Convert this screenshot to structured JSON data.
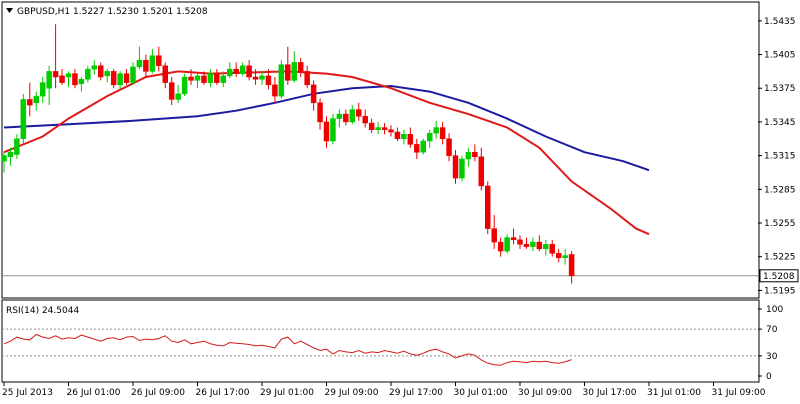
{
  "header": {
    "symbol_line": "GBPUSD,H1  1.5227 1.5230 1.5201 1.5208",
    "rsi_label": "RSI(14) 24.5044"
  },
  "colors": {
    "bull": "#00cc00",
    "bear": "#ee0000",
    "ma_fast": "#e01818",
    "ma_slow": "#1c1ca0",
    "rsi": "#d41c1c",
    "level_line": "#909090"
  },
  "chart_data": [
    {
      "type": "candlestick",
      "title": "GBPUSD,H1",
      "ohlc_header": [
        1.5227,
        1.523,
        1.5201,
        1.5208
      ],
      "ylim": [
        1.519,
        1.545
      ],
      "y_ticks": [
        "1.5435",
        "1.5405",
        "1.5375",
        "1.5345",
        "1.5315",
        "1.5285",
        "1.5255",
        "1.5225",
        "1.5195"
      ],
      "current_price_label": "1.5208",
      "current_price": 1.5208,
      "x_tick_labels": [
        "25 Jul 2013",
        "26 Jul 01:00",
        "26 Jul 09:00",
        "26 Jul 17:00",
        "29 Jul 01:00",
        "29 Jul 09:00",
        "29 Jul 17:00",
        "30 Jul 01:00",
        "30 Jul 09:00",
        "30 Jul 17:00",
        "31 Jul 01:00",
        "31 Jul 09:00"
      ],
      "x_tick_bar_index": [
        0,
        10,
        20,
        30,
        40,
        50,
        60,
        70,
        80,
        90,
        100,
        110
      ],
      "candles": [
        [
          1.531,
          1.5318,
          1.53,
          1.5315
        ],
        [
          1.5314,
          1.5322,
          1.5306,
          1.5318
        ],
        [
          1.5316,
          1.5334,
          1.5312,
          1.533
        ],
        [
          1.533,
          1.537,
          1.5325,
          1.5365
        ],
        [
          1.5365,
          1.538,
          1.535,
          1.536
        ],
        [
          1.5362,
          1.5372,
          1.5355,
          1.5368
        ],
        [
          1.5368,
          1.5385,
          1.5362,
          1.538
        ],
        [
          1.5375,
          1.5395,
          1.536,
          1.539
        ],
        [
          1.539,
          1.5432,
          1.5375,
          1.5385
        ],
        [
          1.5386,
          1.5392,
          1.5378,
          1.538
        ],
        [
          1.5385,
          1.539,
          1.5376,
          1.5388
        ],
        [
          1.5388,
          1.5392,
          1.5375,
          1.5378
        ],
        [
          1.5379,
          1.5385,
          1.5372,
          1.5383
        ],
        [
          1.5383,
          1.5395,
          1.538,
          1.5392
        ],
        [
          1.5392,
          1.54,
          1.5387,
          1.5395
        ],
        [
          1.5395,
          1.5398,
          1.5382,
          1.5385
        ],
        [
          1.5386,
          1.5392,
          1.538,
          1.539
        ],
        [
          1.539,
          1.5392,
          1.5375,
          1.5378
        ],
        [
          1.5378,
          1.539,
          1.5374,
          1.5388
        ],
        [
          1.5388,
          1.5392,
          1.5378,
          1.538
        ],
        [
          1.538,
          1.5398,
          1.5378,
          1.5394
        ],
        [
          1.5394,
          1.5412,
          1.5392,
          1.54
        ],
        [
          1.54,
          1.5405,
          1.5385,
          1.539
        ],
        [
          1.539,
          1.541,
          1.5388,
          1.5404
        ],
        [
          1.5404,
          1.5412,
          1.539,
          1.5395
        ],
        [
          1.5395,
          1.5398,
          1.5375,
          1.538
        ],
        [
          1.538,
          1.5385,
          1.536,
          1.5365
        ],
        [
          1.5365,
          1.5378,
          1.5362,
          1.537
        ],
        [
          1.537,
          1.5388,
          1.5368,
          1.5385
        ],
        [
          1.5385,
          1.5392,
          1.5378,
          1.5382
        ],
        [
          1.5382,
          1.5388,
          1.5375,
          1.5386
        ],
        [
          1.5386,
          1.539,
          1.5378,
          1.538
        ],
        [
          1.538,
          1.5392,
          1.5376,
          1.5388
        ],
        [
          1.5388,
          1.5392,
          1.5378,
          1.538
        ],
        [
          1.538,
          1.539,
          1.5376,
          1.5386
        ],
        [
          1.5386,
          1.5398,
          1.5384,
          1.5392
        ],
        [
          1.5392,
          1.5398,
          1.5385,
          1.5388
        ],
        [
          1.5388,
          1.5398,
          1.5386,
          1.5395
        ],
        [
          1.5395,
          1.54,
          1.5382,
          1.5385
        ],
        [
          1.5385,
          1.5392,
          1.5378,
          1.5383
        ],
        [
          1.5383,
          1.539,
          1.5378,
          1.5386
        ],
        [
          1.5386,
          1.5392,
          1.5374,
          1.5378
        ],
        [
          1.5378,
          1.5385,
          1.5362,
          1.5368
        ],
        [
          1.5368,
          1.54,
          1.5366,
          1.5396
        ],
        [
          1.5396,
          1.5412,
          1.5378,
          1.5382
        ],
        [
          1.5382,
          1.5408,
          1.538,
          1.5398
        ],
        [
          1.5398,
          1.5402,
          1.5385,
          1.539
        ],
        [
          1.539,
          1.5395,
          1.5375,
          1.5378
        ],
        [
          1.5378,
          1.5382,
          1.5355,
          1.5362
        ],
        [
          1.5362,
          1.5366,
          1.5338,
          1.5345
        ],
        [
          1.5345,
          1.535,
          1.5322,
          1.5328
        ],
        [
          1.5328,
          1.5352,
          1.5325,
          1.5348
        ],
        [
          1.5348,
          1.5356,
          1.534,
          1.5352
        ],
        [
          1.5352,
          1.5356,
          1.5342,
          1.5345
        ],
        [
          1.5345,
          1.536,
          1.5343,
          1.5356
        ],
        [
          1.5356,
          1.5362,
          1.5346,
          1.535
        ],
        [
          1.535,
          1.5356,
          1.534,
          1.5344
        ],
        [
          1.5344,
          1.5348,
          1.5335,
          1.5338
        ],
        [
          1.5338,
          1.5345,
          1.5334,
          1.534
        ],
        [
          1.534,
          1.5344,
          1.5334,
          1.5338
        ],
        [
          1.5338,
          1.5342,
          1.5332,
          1.5336
        ],
        [
          1.5336,
          1.534,
          1.5328,
          1.533
        ],
        [
          1.533,
          1.5338,
          1.5325,
          1.5334
        ],
        [
          1.5334,
          1.534,
          1.5322,
          1.5325
        ],
        [
          1.5325,
          1.533,
          1.5312,
          1.5318
        ],
        [
          1.5318,
          1.533,
          1.5316,
          1.5328
        ],
        [
          1.5328,
          1.5338,
          1.5322,
          1.5335
        ],
        [
          1.5335,
          1.5346,
          1.533,
          1.534
        ],
        [
          1.534,
          1.5345,
          1.5325,
          1.533
        ],
        [
          1.533,
          1.5335,
          1.531,
          1.5315
        ],
        [
          1.5315,
          1.532,
          1.529,
          1.5295
        ],
        [
          1.5295,
          1.5315,
          1.5292,
          1.5312
        ],
        [
          1.5312,
          1.5322,
          1.5305,
          1.5318
        ],
        [
          1.5318,
          1.5325,
          1.531,
          1.5314
        ],
        [
          1.5314,
          1.5322,
          1.5284,
          1.5288
        ],
        [
          1.5288,
          1.5292,
          1.5245,
          1.525
        ],
        [
          1.525,
          1.5262,
          1.5232,
          1.5238
        ],
        [
          1.5238,
          1.5242,
          1.5225,
          1.523
        ],
        [
          1.523,
          1.5245,
          1.5228,
          1.5242
        ],
        [
          1.5242,
          1.525,
          1.5236,
          1.524
        ],
        [
          1.524,
          1.5244,
          1.5232,
          1.5236
        ],
        [
          1.5236,
          1.5242,
          1.5232,
          1.5234
        ],
        [
          1.5234,
          1.5242,
          1.523,
          1.5238
        ],
        [
          1.5238,
          1.5244,
          1.523,
          1.5232
        ],
        [
          1.5232,
          1.524,
          1.5226,
          1.5236
        ],
        [
          1.5236,
          1.524,
          1.5225,
          1.5228
        ],
        [
          1.5228,
          1.5232,
          1.522,
          1.5224
        ],
        [
          1.5224,
          1.5232,
          1.5218,
          1.5226
        ],
        [
          1.5227,
          1.523,
          1.5201,
          1.5208
        ]
      ],
      "ma_fast_points": [
        [
          0,
          1.5318
        ],
        [
          6,
          1.5332
        ],
        [
          10,
          1.5348
        ],
        [
          16,
          1.5368
        ],
        [
          22,
          1.5385
        ],
        [
          27,
          1.539
        ],
        [
          32,
          1.5388
        ],
        [
          38,
          1.5389
        ],
        [
          44,
          1.539
        ],
        [
          50,
          1.5388
        ],
        [
          54,
          1.5385
        ],
        [
          60,
          1.5375
        ],
        [
          66,
          1.5362
        ],
        [
          72,
          1.5352
        ],
        [
          78,
          1.534
        ],
        [
          83,
          1.5322
        ],
        [
          88,
          1.5292
        ],
        [
          94,
          1.5268
        ],
        [
          98,
          1.525
        ],
        [
          100,
          1.5245
        ]
      ],
      "ma_slow_points": [
        [
          0,
          1.534
        ],
        [
          10,
          1.5343
        ],
        [
          20,
          1.5346
        ],
        [
          30,
          1.535
        ],
        [
          36,
          1.5355
        ],
        [
          42,
          1.5362
        ],
        [
          48,
          1.537
        ],
        [
          54,
          1.5375
        ],
        [
          60,
          1.5377
        ],
        [
          66,
          1.5372
        ],
        [
          72,
          1.5362
        ],
        [
          78,
          1.5348
        ],
        [
          84,
          1.5332
        ],
        [
          90,
          1.5318
        ],
        [
          96,
          1.531
        ],
        [
          100,
          1.5302
        ]
      ]
    },
    {
      "type": "line",
      "title": "RSI(14)",
      "current_value": 24.5044,
      "ylim": [
        0,
        100
      ],
      "y_ticks": [
        "100",
        "70",
        "30",
        "0"
      ],
      "levels": [
        70,
        30
      ],
      "values": [
        48,
        52,
        58,
        55,
        54,
        62,
        58,
        56,
        60,
        55,
        57,
        56,
        61,
        58,
        55,
        52,
        56,
        57,
        54,
        58,
        59,
        53,
        55,
        54,
        56,
        60,
        52,
        50,
        54,
        48,
        50,
        52,
        48,
        46,
        45,
        50,
        49,
        48,
        47,
        45,
        46,
        44,
        42,
        55,
        58,
        48,
        52,
        47,
        42,
        38,
        40,
        33,
        38,
        36,
        35,
        38,
        34,
        36,
        35,
        38,
        36,
        34,
        37,
        33,
        31,
        34,
        38,
        40,
        36,
        33,
        27,
        30,
        33,
        31,
        24,
        19,
        17,
        16,
        20,
        22,
        21,
        20,
        22,
        21,
        22,
        20,
        19,
        21,
        24.5
      ]
    }
  ]
}
